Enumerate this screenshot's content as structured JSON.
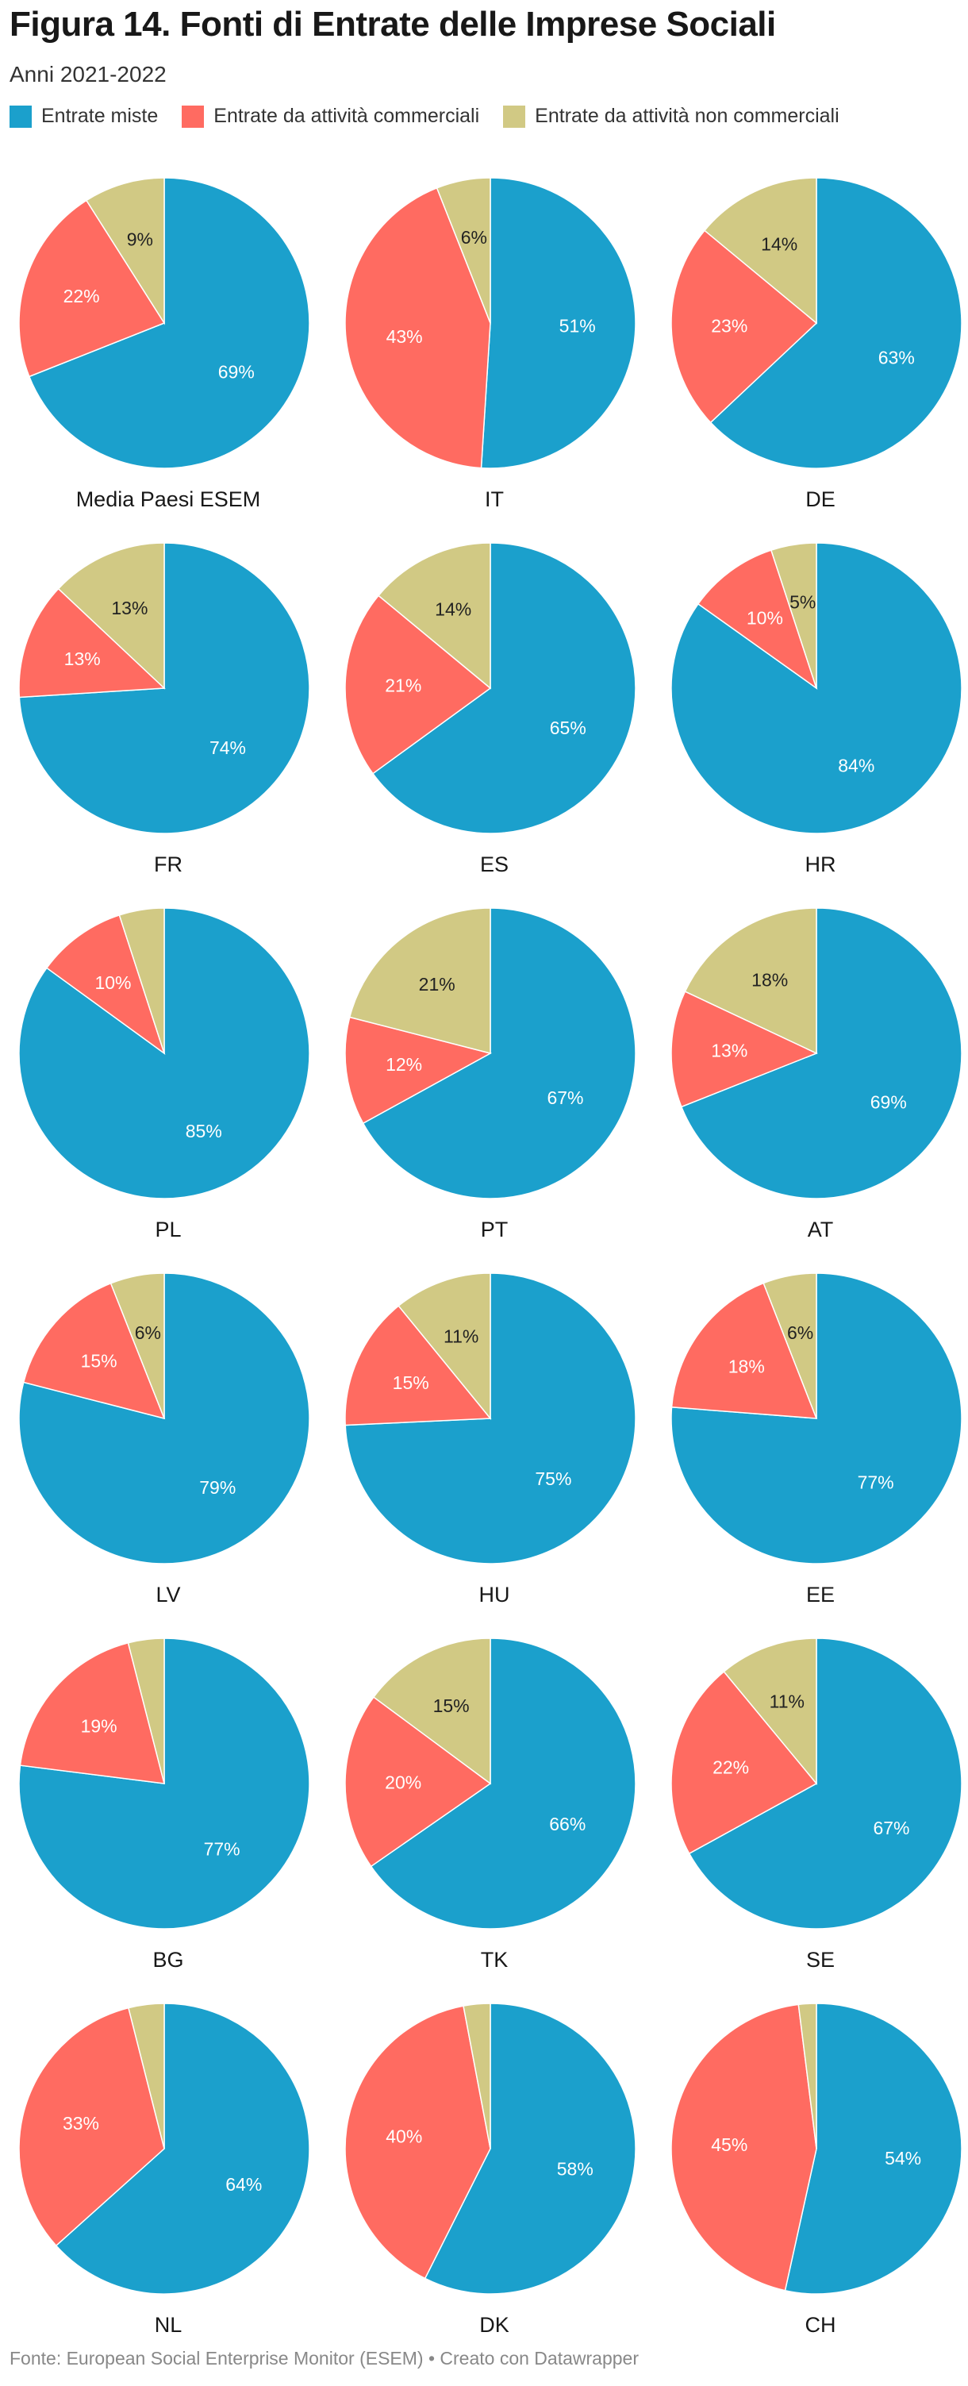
{
  "header": {
    "title": "Figura 14. Fonti di Entrate delle Imprese Sociali",
    "subtitle": "Anni 2021-2022"
  },
  "legend": [
    {
      "label": "Entrate miste",
      "color": "#1ba0cc"
    },
    {
      "label": "Entrate da attività commerciali",
      "color": "#ff6b61"
    },
    {
      "label": "Entrate da attività non commerciali",
      "color": "#d1c984"
    }
  ],
  "footer": {
    "source": "Fonte: European Social Enterprise Monitor (ESEM) • Creato con Datawrapper"
  },
  "chart_data": {
    "type": "pie",
    "title": "Figura 14. Fonti di Entrate delle Imprese Sociali",
    "subtitle": "Anni 2021-2022",
    "series_names": [
      "Entrate miste",
      "Entrate da attività commerciali",
      "Entrate da attività non commerciali"
    ],
    "colors": [
      "#1ba0cc",
      "#ff6b61",
      "#d1c984"
    ],
    "pies": [
      {
        "label": "Media Paesi ESEM",
        "values": [
          69,
          22,
          9
        ],
        "labels": [
          "69%",
          "22%",
          "9%"
        ]
      },
      {
        "label": "IT",
        "values": [
          51,
          43,
          6
        ],
        "labels": [
          "51%",
          "43%",
          "6%"
        ]
      },
      {
        "label": "DE",
        "values": [
          63,
          23,
          14
        ],
        "labels": [
          "63%",
          "23%",
          "14%"
        ]
      },
      {
        "label": "FR",
        "values": [
          74,
          13,
          13
        ],
        "labels": [
          "74%",
          "13%",
          "13%"
        ]
      },
      {
        "label": "ES",
        "values": [
          65,
          21,
          14
        ],
        "labels": [
          "65%",
          "21%",
          "14%"
        ]
      },
      {
        "label": "HR",
        "values": [
          84,
          10,
          5
        ],
        "labels": [
          "84%",
          "10%",
          "5%"
        ]
      },
      {
        "label": "PL",
        "values": [
          85,
          10,
          5
        ],
        "labels": [
          "85%",
          "10%",
          ""
        ]
      },
      {
        "label": "PT",
        "values": [
          67,
          12,
          21
        ],
        "labels": [
          "67%",
          "12%",
          "21%"
        ]
      },
      {
        "label": "AT",
        "values": [
          69,
          13,
          18
        ],
        "labels": [
          "69%",
          "13%",
          "18%"
        ]
      },
      {
        "label": "LV",
        "values": [
          79,
          15,
          6
        ],
        "labels": [
          "79%",
          "15%",
          "6%"
        ]
      },
      {
        "label": "HU",
        "values": [
          75,
          15,
          11
        ],
        "labels": [
          "75%",
          "15%",
          "11%"
        ]
      },
      {
        "label": "EE",
        "values": [
          77,
          18,
          6
        ],
        "labels": [
          "77%",
          "18%",
          "6%"
        ]
      },
      {
        "label": "BG",
        "values": [
          77,
          19,
          4
        ],
        "labels": [
          "77%",
          "19%",
          ""
        ]
      },
      {
        "label": "TK",
        "values": [
          66,
          20,
          15
        ],
        "labels": [
          "66%",
          "20%",
          "15%"
        ]
      },
      {
        "label": "SE",
        "values": [
          67,
          22,
          11
        ],
        "labels": [
          "67%",
          "22%",
          "11%"
        ]
      },
      {
        "label": "NL",
        "values": [
          64,
          33,
          4
        ],
        "labels": [
          "64%",
          "33%",
          ""
        ]
      },
      {
        "label": "DK",
        "values": [
          58,
          40,
          3
        ],
        "labels": [
          "58%",
          "40%",
          ""
        ]
      },
      {
        "label": "CH",
        "values": [
          54,
          45,
          2
        ],
        "labels": [
          "54%",
          "45%",
          ""
        ]
      }
    ]
  }
}
